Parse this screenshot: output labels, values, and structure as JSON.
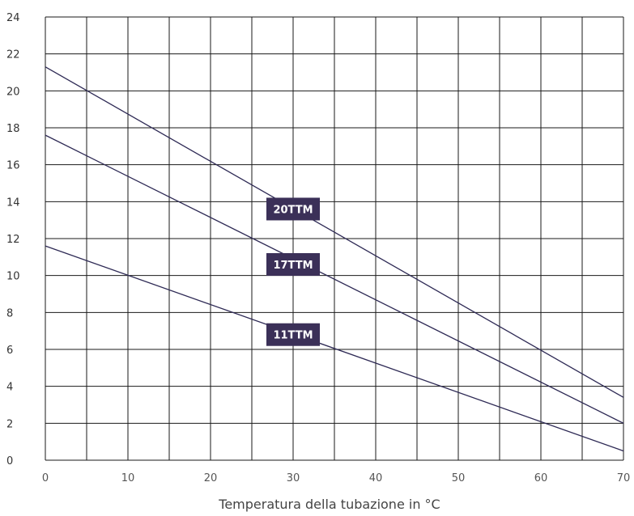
{
  "chart_data": {
    "type": "line",
    "title": "",
    "xlabel": "Temperatura della tubazione in °C",
    "ylabel": "",
    "xlim": [
      0,
      70
    ],
    "ylim": [
      0,
      24
    ],
    "x_ticks": [
      0,
      10,
      20,
      30,
      40,
      50,
      60,
      70
    ],
    "y_ticks": [
      0,
      2,
      4,
      6,
      8,
      10,
      12,
      14,
      16,
      18,
      20,
      22,
      24
    ],
    "grid": true,
    "line_color": "#2e2a55",
    "label_color": "#3b3058",
    "series": [
      {
        "name": "20TTM",
        "x": [
          0,
          70
        ],
        "y": [
          21.3,
          3.4
        ],
        "label_at": [
          30,
          13.6
        ]
      },
      {
        "name": "17TTM",
        "x": [
          0,
          70
        ],
        "y": [
          17.6,
          2.0
        ],
        "label_at": [
          30,
          10.6
        ]
      },
      {
        "name": "11TTM",
        "x": [
          0,
          70
        ],
        "y": [
          11.6,
          0.5
        ],
        "label_at": [
          30,
          6.8
        ]
      }
    ]
  }
}
